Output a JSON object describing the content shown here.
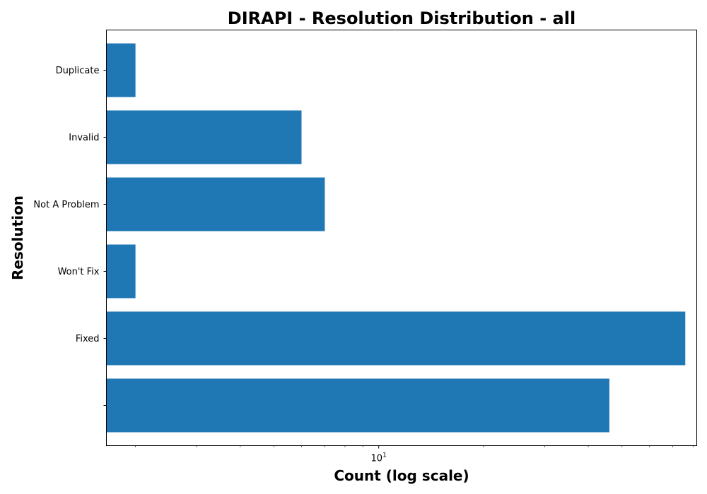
{
  "chart_data": {
    "type": "bar",
    "orientation": "horizontal",
    "title": "DIRAPI - Resolution Distribution - all",
    "xlabel": "Count (log scale)",
    "ylabel": "Resolution",
    "x_scale": "log",
    "xlim": [
      1.65,
      82
    ],
    "x_major_tick": {
      "base": "10",
      "exponent": "1",
      "value": 10
    },
    "categories": [
      "",
      "Fixed",
      "Won't Fix",
      "Not A Problem",
      "Invalid",
      "Duplicate"
    ],
    "values": [
      46,
      76,
      2,
      7,
      6,
      2
    ],
    "bar_color": "#1f77b4",
    "grid": false,
    "legend": "none"
  }
}
